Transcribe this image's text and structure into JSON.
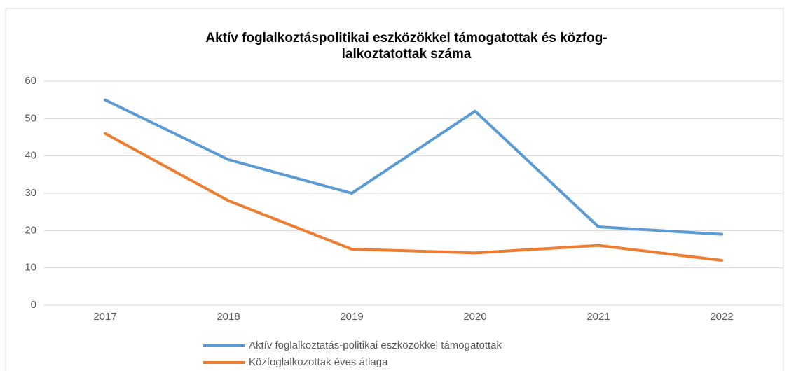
{
  "chart_data": {
    "type": "line",
    "title": [
      "Aktív foglalkoztáspolitikai eszközökkel támogatottak és közfog-",
      "lalkoztatottak száma"
    ],
    "categories": [
      "2017",
      "2018",
      "2019",
      "2020",
      "2021",
      "2022"
    ],
    "series": [
      {
        "name": "Aktív foglalkoztatás-politikai eszközökkel támogatottak",
        "color": "#5b9bd5",
        "values": [
          55,
          39,
          30,
          52,
          21,
          19
        ]
      },
      {
        "name": "Közfoglalkozottak éves átlaga",
        "color": "#ed7d31",
        "values": [
          46,
          28,
          15,
          14,
          16,
          12
        ]
      }
    ],
    "ylim": [
      0,
      60
    ],
    "yticks": [
      0,
      10,
      20,
      30,
      40,
      50,
      60
    ],
    "grid": true,
    "legend": "bottom"
  }
}
